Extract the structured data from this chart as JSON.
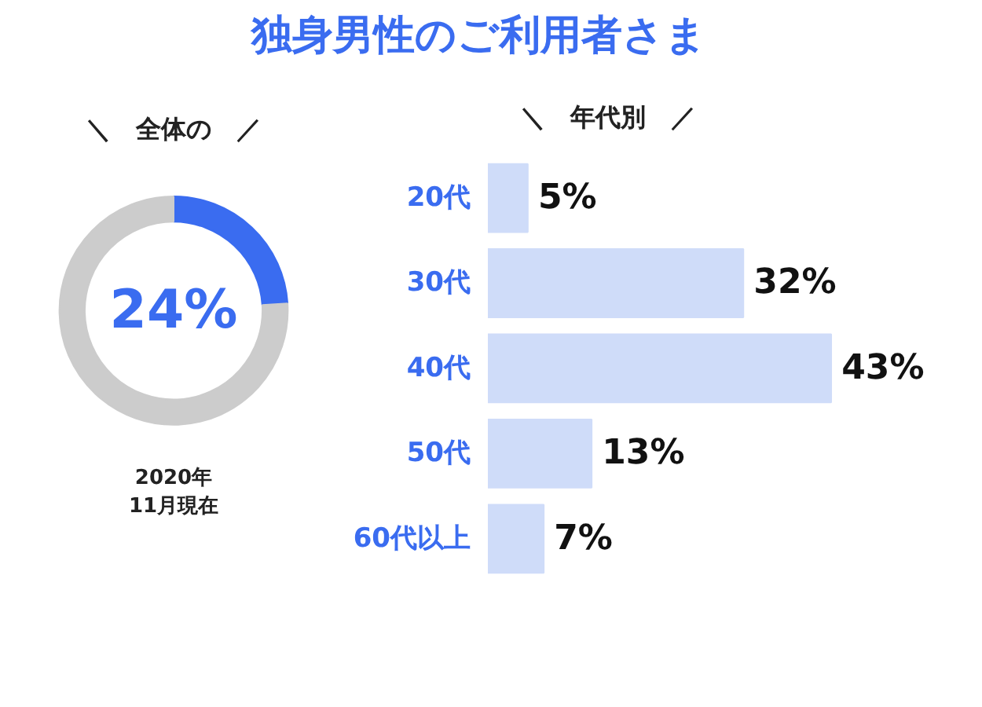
{
  "chart_data": [
    {
      "type": "donut",
      "title": "独身男性のご利用者さま",
      "subtitle": "＼　全体の　／",
      "categories": [
        null,
        null
      ],
      "values": [
        24,
        76
      ],
      "colors": [
        "#3a6cf0",
        "#cccccc"
      ],
      "value_labels": [
        "24%",
        null
      ],
      "annotations": [
        "2020年\n11月現在"
      ]
    },
    {
      "type": "bar",
      "orientation": "horizontal",
      "title": "＼　年代別　／",
      "categories": [
        "20代",
        "30代",
        "40代",
        "50代",
        "60代以上"
      ],
      "values": [
        5,
        32,
        43,
        13,
        7
      ],
      "color": "#cfdcf9",
      "value_labels": [
        "5%",
        "32%",
        "43%",
        "13%",
        "7%"
      ]
    }
  ]
}
